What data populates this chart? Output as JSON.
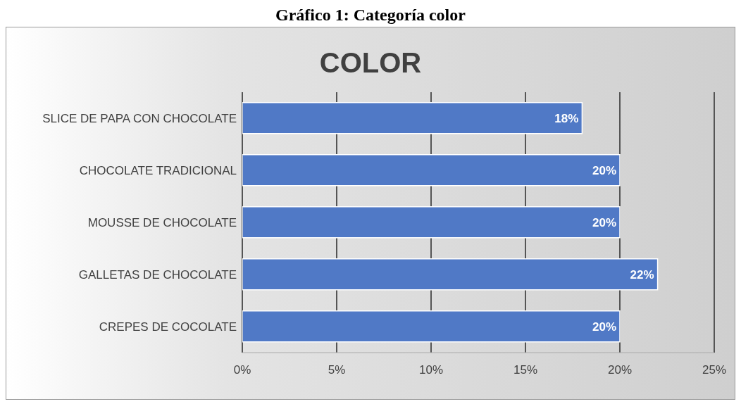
{
  "chart_data": {
    "type": "bar",
    "orientation": "horizontal",
    "title": "Gráfico 1: Categoría color",
    "subtitle": "COLOR",
    "categories": [
      "SLICE DE PAPA CON CHOCOLATE",
      "CHOCOLATE TRADICIONAL",
      "MOUSSE DE CHOCOLATE",
      "GALLETAS DE CHOCOLATE",
      "CREPES DE COCOLATE"
    ],
    "values": [
      18,
      20,
      20,
      22,
      20
    ],
    "value_labels": [
      "18%",
      "20%",
      "20%",
      "22%",
      "20%"
    ],
    "color": "#5079c6",
    "xlim": [
      0,
      25
    ],
    "xticks": [
      {
        "value": 0,
        "label": "0%"
      },
      {
        "value": 5,
        "label": "5%"
      },
      {
        "value": 10,
        "label": "10%"
      },
      {
        "value": 15,
        "label": "15%"
      },
      {
        "value": 20,
        "label": "20%"
      },
      {
        "value": 25,
        "label": "25%"
      }
    ],
    "grid": "x"
  }
}
